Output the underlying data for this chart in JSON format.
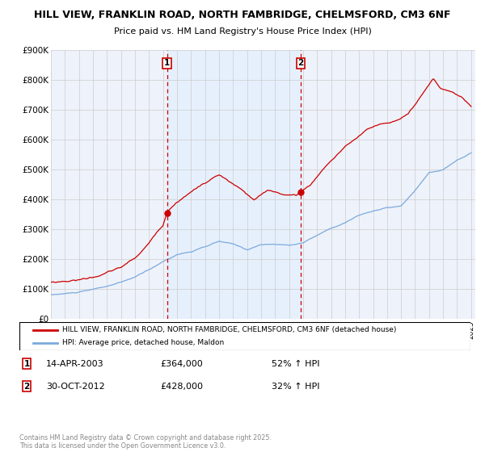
{
  "title1": "HILL VIEW, FRANKLIN ROAD, NORTH FAMBRIDGE, CHELMSFORD, CM3 6NF",
  "title2": "Price paid vs. HM Land Registry's House Price Index (HPI)",
  "ylim": [
    0,
    900000
  ],
  "yticks": [
    0,
    100000,
    200000,
    300000,
    400000,
    500000,
    600000,
    700000,
    800000,
    900000
  ],
  "ytick_labels": [
    "£0",
    "£100K",
    "£200K",
    "£300K",
    "£400K",
    "£500K",
    "£600K",
    "£700K",
    "£800K",
    "£900K"
  ],
  "background_color": "#ffffff",
  "plot_bg_color": "#eef2fa",
  "grid_color": "#cccccc",
  "legend1_label": "HILL VIEW, FRANKLIN ROAD, NORTH FAMBRIDGE, CHELMSFORD, CM3 6NF (detached house)",
  "legend2_label": "HPI: Average price, detached house, Maldon",
  "sale1_date": "14-APR-2003",
  "sale1_price": 364000,
  "sale1_pct": "52% ↑ HPI",
  "sale2_date": "30-OCT-2012",
  "sale2_price": 428000,
  "sale2_pct": "32% ↑ HPI",
  "line1_color": "#cc0000",
  "line2_color": "#7aaadd",
  "marker_vline_color": "#cc0000",
  "shade_color": "#ddeeff",
  "footer": "Contains HM Land Registry data © Crown copyright and database right 2025.\nThis data is licensed under the Open Government Licence v3.0.",
  "sale1_x": 2003.29,
  "sale2_x": 2012.83,
  "hpi_seed": 10,
  "prop_seed": 20
}
